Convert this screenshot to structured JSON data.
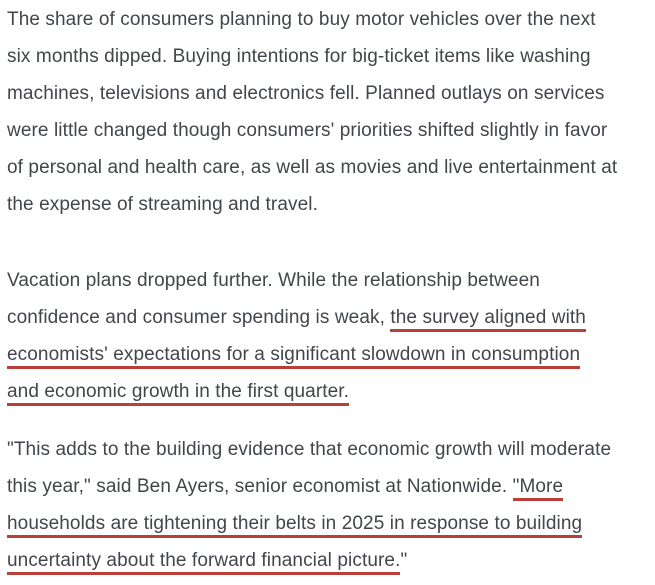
{
  "page": {
    "background": "#ffffff",
    "text_color": "#42464b",
    "underline_color": "#b94038"
  },
  "article": {
    "paragraphs": [
      {
        "lines": [
          [
            {
              "text": "The share of consumers planning to buy motor vehicles over the next",
              "underline": false
            }
          ],
          [
            {
              "text": "six months dipped. Buying intentions for big-ticket items like washing",
              "underline": false
            }
          ],
          [
            {
              "text": "machines, televisions and electronics fell. Planned outlays on services",
              "underline": false
            }
          ],
          [
            {
              "text": "were little changed though consumers' priorities shifted slightly in favor",
              "underline": false
            }
          ],
          [
            {
              "text": "of personal and health care, as well as movies and live entertainment at",
              "underline": false
            }
          ],
          [
            {
              "text": "the expense of streaming and travel.",
              "underline": false
            }
          ]
        ]
      },
      {
        "lines": [
          [
            {
              "text": "Vacation plans dropped further. While the relationship between",
              "underline": false
            }
          ],
          [
            {
              "text": "confidence and consumer spending is weak, ",
              "underline": false
            },
            {
              "text": "the survey aligned with",
              "underline": true
            }
          ],
          [
            {
              "text": "economists' expectations for a significant slowdown in consumption",
              "underline": true
            }
          ],
          [
            {
              "text": "and economic growth in the first quarter.",
              "underline": true
            }
          ]
        ]
      },
      {
        "lines": [
          [
            {
              "text": "\"This adds to the building evidence that economic growth will moderate",
              "underline": false
            }
          ],
          [
            {
              "text": "this year,\" said Ben Ayers, senior economist at Nationwide. ",
              "underline": false
            },
            {
              "text": "\"More",
              "underline": true
            }
          ],
          [
            {
              "text": "households are tightening their belts in 2025 in response to building",
              "underline": true
            }
          ],
          [
            {
              "text": "uncertainty about the forward financial picture.",
              "underline": true
            },
            {
              "text": "\"",
              "underline": false
            }
          ]
        ]
      }
    ]
  }
}
